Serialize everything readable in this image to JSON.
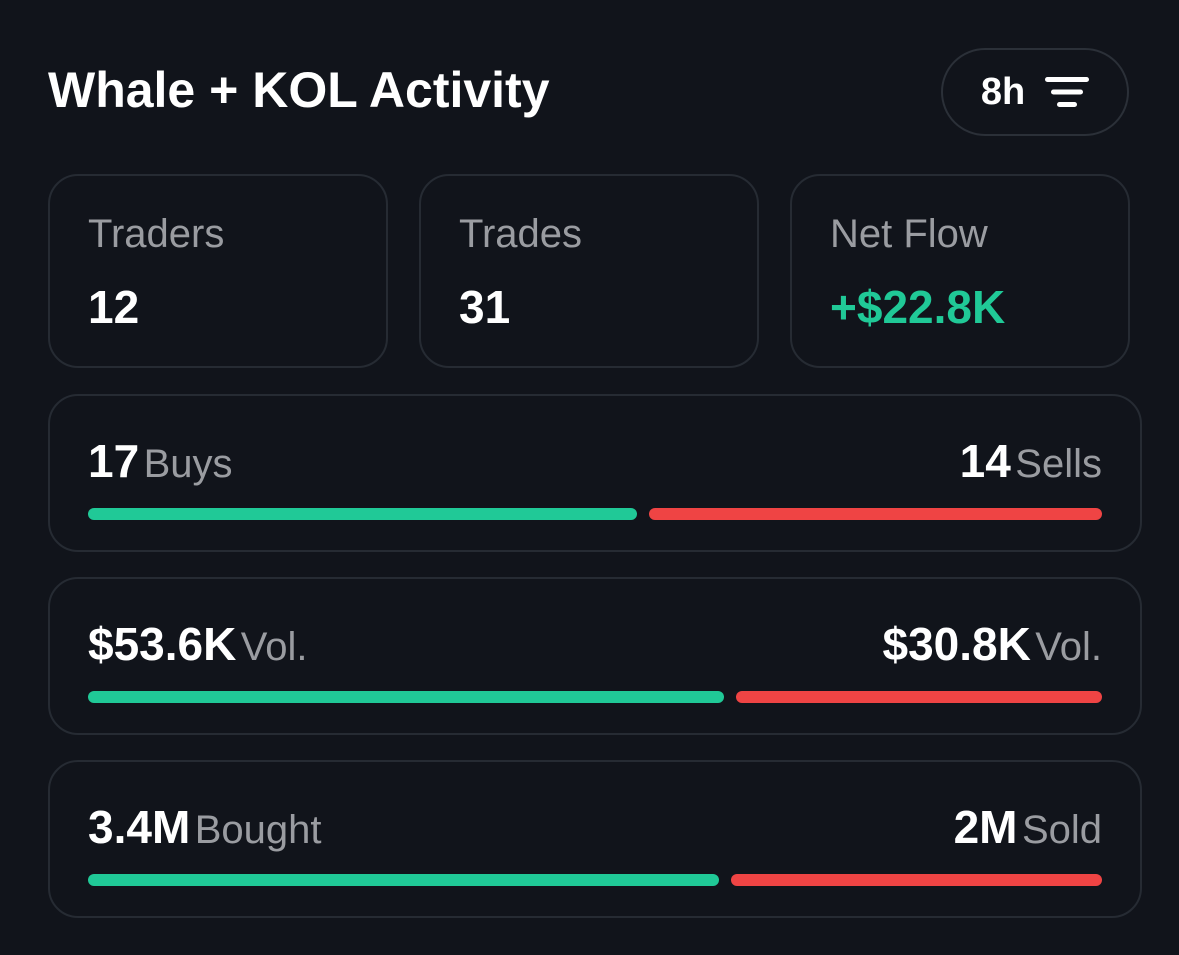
{
  "header": {
    "title": "Whale + KOL Activity",
    "time_filter": "8h",
    "filter_icon": "filter-lines-icon"
  },
  "stats": [
    {
      "label": "Traders",
      "value": "12"
    },
    {
      "label": "Trades",
      "value": "31"
    },
    {
      "label": "Net Flow",
      "value": "+$22.8K"
    }
  ],
  "rows": [
    {
      "left_value": "17",
      "left_unit": "Buys",
      "right_value": "14",
      "right_unit": "Sells",
      "buy_share": 0.548
    },
    {
      "left_value": "$53.6K",
      "left_unit": "Vol.",
      "right_value": "$30.8K",
      "right_unit": "Vol.",
      "buy_share": 0.635
    },
    {
      "left_value": "3.4M",
      "left_unit": "Bought",
      "right_value": "2M",
      "right_unit": "Sold",
      "buy_share": 0.63
    }
  ],
  "colors": {
    "background": "#11141b",
    "positive": "#20c997",
    "negative": "#ef4444",
    "muted_text": "#9a9ca1",
    "card_border": "#262b33"
  }
}
